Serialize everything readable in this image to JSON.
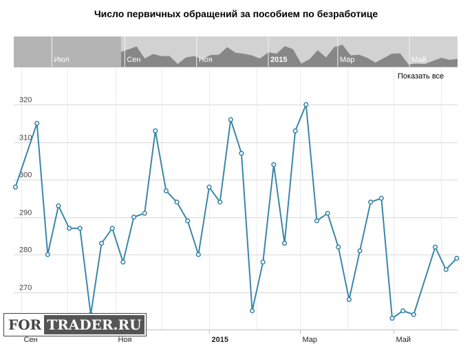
{
  "chart_data": {
    "type": "line",
    "title": "Число первичных обращений за пособием по безработице",
    "xlabel": "",
    "ylabel": "",
    "ylim": [
      260,
      325
    ],
    "y_ticks": [
      270,
      280,
      290,
      300,
      310,
      320
    ],
    "x_ticks": [
      {
        "date": "2014-09-01",
        "label": "Сен",
        "bold": false
      },
      {
        "date": "2014-11-01",
        "label": "Ноя",
        "bold": false
      },
      {
        "date": "2015-01-01",
        "label": "2015",
        "bold": true
      },
      {
        "date": "2015-03-01",
        "label": "Мар",
        "bold": false
      },
      {
        "date": "2015-05-01",
        "label": "Май",
        "bold": false
      }
    ],
    "grid": true,
    "line_color": "#3a86a8",
    "series": [
      {
        "x": [
          "2014-08-28",
          "2014-09-11",
          "2014-09-18",
          "2014-09-25",
          "2014-10-02",
          "2014-10-09",
          "2014-10-16",
          "2014-10-23",
          "2014-10-30",
          "2014-11-06",
          "2014-11-13",
          "2014-11-20",
          "2014-11-27",
          "2014-12-04",
          "2014-12-11",
          "2014-12-18",
          "2014-12-25",
          "2015-01-01",
          "2015-01-08",
          "2015-01-15",
          "2015-01-22",
          "2015-01-29",
          "2015-02-05",
          "2015-02-12",
          "2015-02-19",
          "2015-02-26",
          "2015-03-05",
          "2015-03-12",
          "2015-03-19",
          "2015-03-26",
          "2015-04-02",
          "2015-04-09",
          "2015-04-16",
          "2015-04-23",
          "2015-04-30",
          "2015-05-07",
          "2015-05-14",
          "2015-05-28",
          "2015-06-04",
          "2015-06-11"
        ],
        "values": [
          298,
          315,
          280,
          293,
          287,
          287,
          264,
          283,
          287,
          278,
          290,
          291,
          313,
          297,
          294,
          289,
          280,
          298,
          294,
          316,
          307,
          265,
          278,
          304,
          283,
          313,
          320,
          289,
          291,
          282,
          268,
          281,
          294,
          295,
          263,
          265,
          264,
          282,
          276,
          279
        ]
      }
    ],
    "navigator": {
      "labels": [
        {
          "date": "2014-07-01",
          "label": "Июл",
          "bold": false
        },
        {
          "date": "2014-09-01",
          "label": "Сен",
          "bold": false
        },
        {
          "date": "2014-11-01",
          "label": "Ноя",
          "bold": false
        },
        {
          "date": "2015-01-01",
          "label": "2015",
          "bold": true
        },
        {
          "date": "2015-03-01",
          "label": "Мар",
          "bold": false
        },
        {
          "date": "2015-05-01",
          "label": "Май",
          "bold": false
        }
      ]
    }
  },
  "controls": {
    "show_all": "Показать все"
  },
  "watermark": {
    "part1": "FOR",
    "part2": "TRADER.RU"
  }
}
